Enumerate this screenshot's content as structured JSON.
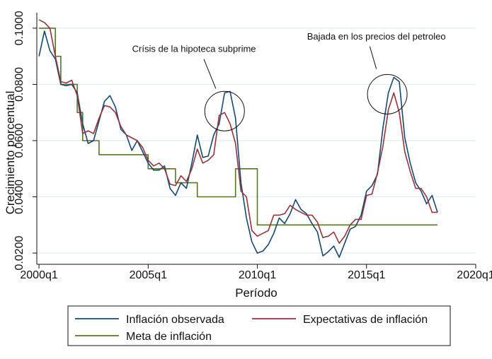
{
  "chart_data": {
    "type": "line",
    "xlabel": "Período",
    "ylabel": "Crecimiento porcentual",
    "xlim": [
      1999.9,
      2020.0
    ],
    "ylim": [
      0.016,
      0.1055
    ],
    "xticks": [
      {
        "value": 2000,
        "label": "2000q1"
      },
      {
        "value": 2005,
        "label": "2005q1"
      },
      {
        "value": 2010,
        "label": "2010q1"
      },
      {
        "value": 2015,
        "label": "2015q1"
      },
      {
        "value": 2020,
        "label": "2020q1"
      }
    ],
    "yticks": [
      {
        "value": 0.02,
        "label": "0.0200"
      },
      {
        "value": 0.04,
        "label": "0.0400"
      },
      {
        "value": 0.06,
        "label": "0.0600"
      },
      {
        "value": 0.08,
        "label": "0.0800"
      },
      {
        "value": 0.1,
        "label": "0.1000"
      }
    ],
    "grid": "horizontal",
    "legend_position": "bottom",
    "series": [
      {
        "name": "Inflación observada",
        "color": "#1a476f",
        "x": [
          2000.0,
          2000.25,
          2000.5,
          2000.75,
          2001.0,
          2001.25,
          2001.5,
          2001.75,
          2002.0,
          2002.25,
          2002.5,
          2002.75,
          2003.0,
          2003.25,
          2003.5,
          2003.75,
          2004.0,
          2004.25,
          2004.5,
          2004.75,
          2005.0,
          2005.25,
          2005.5,
          2005.75,
          2006.0,
          2006.25,
          2006.5,
          2006.75,
          2007.0,
          2007.25,
          2007.5,
          2007.75,
          2008.0,
          2008.25,
          2008.5,
          2008.75,
          2009.0,
          2009.25,
          2009.5,
          2009.75,
          2010.0,
          2010.25,
          2010.5,
          2010.75,
          2011.0,
          2011.25,
          2011.5,
          2011.75,
          2012.0,
          2012.25,
          2012.5,
          2012.75,
          2013.0,
          2013.25,
          2013.5,
          2013.75,
          2014.0,
          2014.25,
          2014.5,
          2014.75,
          2015.0,
          2015.25,
          2015.5,
          2015.75,
          2016.0,
          2016.25,
          2016.5,
          2016.75,
          2017.0,
          2017.25,
          2017.5,
          2017.75,
          2018.0,
          2018.25
        ],
        "values": [
          0.09,
          0.099,
          0.092,
          0.089,
          0.08,
          0.0795,
          0.08,
          0.077,
          0.066,
          0.059,
          0.06,
          0.067,
          0.074,
          0.076,
          0.072,
          0.064,
          0.062,
          0.0565,
          0.06,
          0.056,
          0.052,
          0.0495,
          0.0495,
          0.051,
          0.043,
          0.0405,
          0.045,
          0.043,
          0.052,
          0.062,
          0.054,
          0.0545,
          0.062,
          0.066,
          0.077,
          0.0775,
          0.068,
          0.045,
          0.0325,
          0.024,
          0.02,
          0.0207,
          0.023,
          0.027,
          0.0325,
          0.0305,
          0.034,
          0.039,
          0.0355,
          0.034,
          0.0305,
          0.0275,
          0.019,
          0.0205,
          0.0225,
          0.0185,
          0.0235,
          0.0285,
          0.0295,
          0.0335,
          0.042,
          0.044,
          0.048,
          0.0645,
          0.077,
          0.0825,
          0.081,
          0.061,
          0.052,
          0.045,
          0.042,
          0.0375,
          0.0405,
          0.0345
        ]
      },
      {
        "name": "Expectativas de inflación",
        "color": "#90353b",
        "x": [
          2000.0,
          2000.25,
          2000.5,
          2000.75,
          2001.0,
          2001.25,
          2001.5,
          2001.75,
          2002.0,
          2002.25,
          2002.5,
          2002.75,
          2003.0,
          2003.25,
          2003.5,
          2003.75,
          2004.0,
          2004.25,
          2004.5,
          2004.75,
          2005.0,
          2005.25,
          2005.5,
          2005.75,
          2006.0,
          2006.25,
          2006.5,
          2006.75,
          2007.0,
          2007.25,
          2007.5,
          2007.75,
          2008.0,
          2008.25,
          2008.5,
          2008.75,
          2009.0,
          2009.25,
          2009.5,
          2009.75,
          2010.0,
          2010.25,
          2010.5,
          2010.75,
          2011.0,
          2011.25,
          2011.5,
          2011.75,
          2012.0,
          2012.25,
          2012.5,
          2012.75,
          2013.0,
          2013.25,
          2013.5,
          2013.75,
          2014.0,
          2014.25,
          2014.5,
          2014.75,
          2015.0,
          2015.25,
          2015.5,
          2015.75,
          2016.0,
          2016.25,
          2016.5,
          2016.75,
          2017.0,
          2017.25,
          2017.5,
          2017.75,
          2018.0,
          2018.25
        ],
        "values": [
          0.103,
          0.102,
          0.1,
          0.09,
          0.081,
          0.0805,
          0.0815,
          0.076,
          0.0625,
          0.0635,
          0.0625,
          0.068,
          0.0725,
          0.072,
          0.07,
          0.065,
          0.062,
          0.061,
          0.06,
          0.0575,
          0.053,
          0.051,
          0.052,
          0.05,
          0.0445,
          0.044,
          0.0475,
          0.0455,
          0.05,
          0.057,
          0.052,
          0.053,
          0.055,
          0.069,
          0.07,
          0.066,
          0.059,
          0.042,
          0.04,
          0.028,
          0.026,
          0.027,
          0.028,
          0.0335,
          0.0335,
          0.034,
          0.037,
          0.0355,
          0.0345,
          0.0335,
          0.0335,
          0.031,
          0.0255,
          0.026,
          0.0275,
          0.0235,
          0.026,
          0.03,
          0.032,
          0.032,
          0.0405,
          0.041,
          0.0485,
          0.058,
          0.071,
          0.077,
          0.07,
          0.056,
          0.049,
          0.043,
          0.043,
          0.04,
          0.0345,
          0.0345
        ]
      },
      {
        "name": "Meta de inflación",
        "color": "#55752f",
        "step": true,
        "x": [
          2000.0,
          2000.75,
          2000.75,
          2001.0,
          2001.0,
          2001.75,
          2001.75,
          2002.0,
          2002.0,
          2002.75,
          2002.75,
          2005.0,
          2005.0,
          2006.25,
          2006.25,
          2006.5,
          2006.5,
          2007.25,
          2007.25,
          2009.0,
          2009.0,
          2009.75,
          2009.75,
          2010.0,
          2010.0,
          2018.25
        ],
        "values": [
          0.1,
          0.1,
          0.09,
          0.09,
          0.08,
          0.08,
          0.07,
          0.07,
          0.06,
          0.06,
          0.055,
          0.055,
          0.05,
          0.05,
          0.045,
          0.045,
          0.045,
          0.045,
          0.04,
          0.04,
          0.05,
          0.05,
          0.05,
          0.05,
          0.03,
          0.03
        ]
      }
    ],
    "annotations": [
      {
        "text": "Crísis de la hipoteca subprime",
        "text_x": 2007.1,
        "text_y": 0.0915,
        "circle_x": 2008.5,
        "circle_y": 0.0705,
        "line_from": [
          2007.55,
          0.089
        ],
        "line_to": [
          2008.1,
          0.0785
        ]
      },
      {
        "text": "Bajada en los precios del petroleo",
        "text_x": 2015.45,
        "text_y": 0.096,
        "circle_x": 2015.95,
        "circle_y": 0.0765,
        "line_from": [
          2015.15,
          0.0935
        ],
        "line_to": [
          2015.45,
          0.0855
        ]
      }
    ],
    "legend": [
      {
        "label": "Inflación observada",
        "color": "#1a476f"
      },
      {
        "label": "Expectativas de inflación",
        "color": "#90353b"
      },
      {
        "label": "Meta de inflación",
        "color": "#55752f"
      }
    ]
  }
}
